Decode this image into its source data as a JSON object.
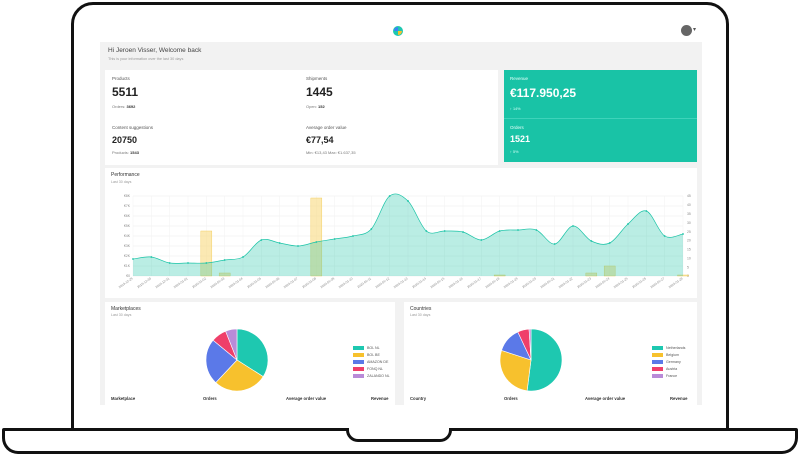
{
  "header": {
    "welcome": "Hi Jeroen Visser, Welcome back",
    "welcome_sub": "This is your information over the last 30 days"
  },
  "kpis": {
    "products": {
      "label": "Products",
      "value": "5511",
      "sub_label": "Orders:",
      "sub_value": "3692"
    },
    "shipments": {
      "label": "Shipments",
      "value": "1445",
      "sub_label": "Open:",
      "sub_value": "152"
    },
    "content": {
      "label": "Content suggestions",
      "value": "20750",
      "sub_label": "Products:",
      "sub_value": "1543"
    },
    "aov": {
      "label": "Average order value",
      "value": "€77,54",
      "sub": "Min: €13,43 Max: €1.637,35"
    }
  },
  "revenue": {
    "label": "Revenue",
    "value": "€117.950,25",
    "sub": "↑ 14%"
  },
  "orders": {
    "label": "Orders",
    "value": "1521",
    "sub": "↑ 5%"
  },
  "performance": {
    "title": "Performance",
    "subtitle": "Last 30 days"
  },
  "chart_data": {
    "type": "area",
    "title": "Performance",
    "subtitle": "Last 30 days",
    "left_ticks": [
      "€0",
      "€1K",
      "€2K",
      "€3K",
      "€4K",
      "€5K",
      "€6K",
      "€7K",
      "€8K"
    ],
    "right_ticks": [
      "0",
      "5",
      "10",
      "15",
      "20",
      "25",
      "30",
      "35",
      "40",
      "45"
    ],
    "x": [
      "2019-12-29",
      "2019-12-30",
      "2019-12-31",
      "2020-01-01",
      "2020-01-02",
      "2020-01-03",
      "2020-01-04",
      "2020-01-05",
      "2020-01-06",
      "2020-01-07",
      "2020-01-08",
      "2020-01-09",
      "2020-01-10",
      "2020-01-11",
      "2020-01-12",
      "2020-01-13",
      "2020-01-14",
      "2020-01-15",
      "2020-01-16",
      "2020-01-17",
      "2020-01-18",
      "2020-01-19",
      "2020-01-20",
      "2020-01-21",
      "2020-01-22",
      "2020-01-23",
      "2020-01-24",
      "2020-01-25",
      "2020-01-26",
      "2020-01-27",
      "2020-01-28"
    ],
    "series": [
      {
        "name": "",
        "type": "area",
        "axis": "left",
        "color": "#19c3a6",
        "values": [
          1700,
          1900,
          1300,
          1300,
          1300,
          1600,
          1900,
          3600,
          3300,
          3000,
          3400,
          3700,
          4000,
          4700,
          8000,
          7500,
          4500,
          4500,
          4400,
          3600,
          4500,
          4600,
          4600,
          3200,
          5000,
          3500,
          3300,
          5200,
          6500,
          4000,
          4200
        ]
      },
      {
        "name": "",
        "type": "bar",
        "axis": "left",
        "color": "#f7d774",
        "values": [
          0,
          0,
          0,
          0,
          4500,
          300,
          0,
          0,
          0,
          0,
          7800,
          0,
          0,
          0,
          0,
          0,
          0,
          0,
          0,
          0,
          100,
          0,
          0,
          0,
          0,
          300,
          1000,
          0,
          0,
          0,
          100
        ]
      }
    ],
    "ylim_left": [
      0,
      8000
    ],
    "ylim_right": [
      0,
      45
    ],
    "grid": true
  },
  "marketplaces": {
    "title": "Marketplaces",
    "subtitle": "Last 30 days",
    "legend": [
      "BOL NL",
      "BOL BE",
      "AMAZON DE",
      "FONQ NL",
      "ZALANDO NL"
    ],
    "colors": [
      "#1ec8b0",
      "#f7c12d",
      "#5b79e8",
      "#ef3f6a",
      "#b98bd8"
    ],
    "shares": [
      34,
      28,
      24,
      8,
      6
    ],
    "columns": [
      "Marketplace",
      "Orders",
      "Average order value",
      "Revenue"
    ]
  },
  "countries": {
    "title": "Countries",
    "subtitle": "Last 30 days",
    "legend": [
      "Netherlands",
      "Belgium",
      "Germany",
      "Austria",
      "France"
    ],
    "colors": [
      "#1ec8b0",
      "#f7c12d",
      "#5b79e8",
      "#ef3f6a",
      "#b98bd8"
    ],
    "shares": [
      52,
      28,
      13,
      6,
      1
    ],
    "columns": [
      "Country",
      "Orders",
      "Average order value",
      "Revenue"
    ]
  }
}
